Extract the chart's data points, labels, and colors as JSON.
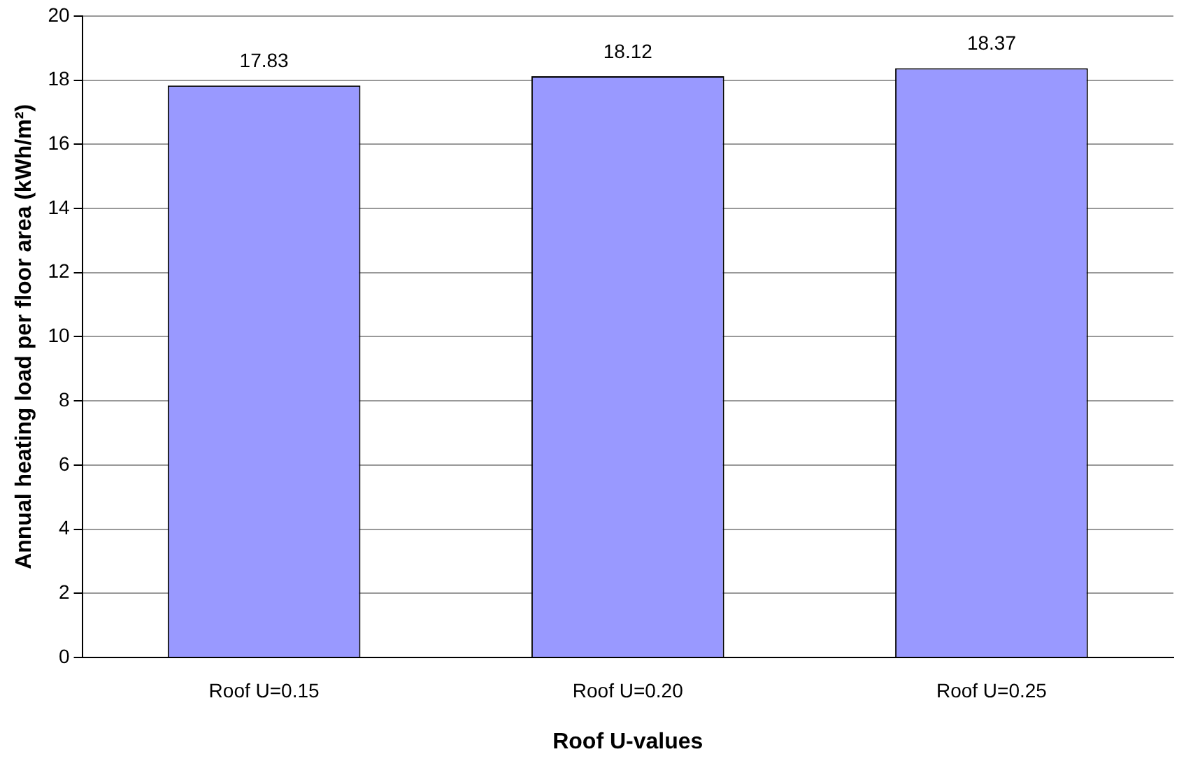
{
  "chart_data": {
    "type": "bar",
    "xlabel": "Roof U-values",
    "ylabel": "Annual heating load per floor area (kWh/m²)",
    "categories": [
      "Roof U=0.15",
      "Roof U=0.20",
      "Roof U=0.25"
    ],
    "values": [
      17.83,
      18.12,
      18.37
    ],
    "color": "#9999ff",
    "ylim": [
      0,
      20
    ],
    "yticks": [
      0,
      2,
      4,
      6,
      8,
      10,
      12,
      14,
      16,
      18,
      20
    ],
    "grid": "y",
    "data_labels": true,
    "legend": false
  }
}
